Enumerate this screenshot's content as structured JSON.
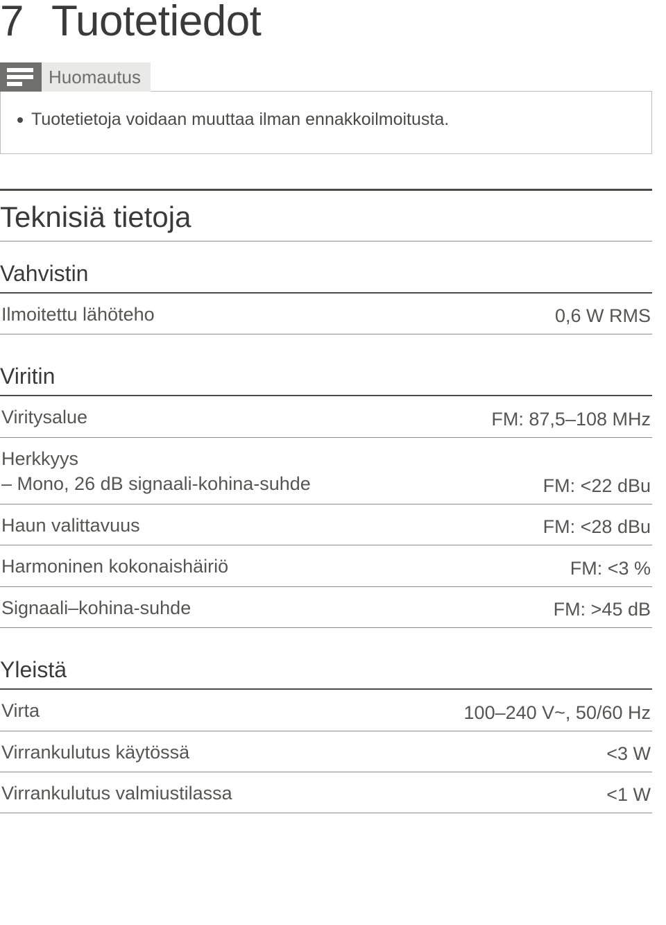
{
  "title": {
    "number": "7",
    "text": "Tuotetiedot"
  },
  "note": {
    "label": "Huomautus",
    "text": "Tuotetietoja voidaan muuttaa ilman ennakkoilmoitusta."
  },
  "sectionTitle": "Teknisiä tietoja",
  "groups": [
    {
      "title": "Vahvistin",
      "rows": [
        {
          "label": "Ilmoitettu lähöteho",
          "value": "0,6 W RMS"
        }
      ]
    },
    {
      "title": "Viritin",
      "rows": [
        {
          "label": "Viritysalue",
          "value": "FM: 87,5–108 MHz"
        },
        {
          "label": "Herkkyys\n – Mono, 26 dB signaali-kohina-suhde",
          "value": "FM: <22 dBu"
        },
        {
          "label": "Haun valittavuus",
          "value": "FM: <28 dBu"
        },
        {
          "label": "Harmoninen kokonaishäiriö",
          "value": "FM: <3 %"
        },
        {
          "label": "Signaali–kohina-suhde",
          "value": "FM: >45 dB"
        }
      ]
    },
    {
      "title": "Yleistä",
      "rows": [
        {
          "label": "Virta",
          "value": "100–240 V~, 50/60 Hz"
        },
        {
          "label": "Virrankulutus käytössä",
          "value": "<3 W"
        },
        {
          "label": "Virrankulutus valmiustilassa",
          "value": "<1 W"
        }
      ]
    }
  ],
  "colors": {
    "text": "#3a3a3a",
    "muted": "#555553",
    "iconBg": "#70706e",
    "noteBg": "#e9e9e8",
    "border": "#bdbdbc",
    "ruleThick": "#4a4a48",
    "ruleThin": "#8a8a88"
  },
  "fontSizes": {
    "pageTitle": 62,
    "sectionTitle": 42,
    "groupTitle": 32,
    "row": 27,
    "noteLabel": 26,
    "noteBody": 25
  }
}
